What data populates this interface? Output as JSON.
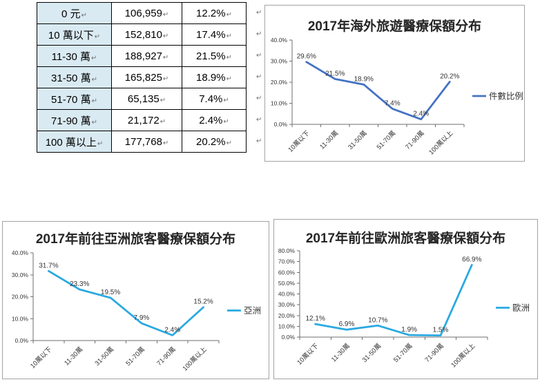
{
  "document": {
    "background": "#ffffff"
  },
  "formatting_mark": "↵",
  "table": {
    "first_column_bg": "#D9EAF2",
    "rows": [
      {
        "range": "0 元",
        "count": "106,959",
        "share": "12.2%"
      },
      {
        "range": "10 萬以下",
        "count": "152,810",
        "share": "17.4%"
      },
      {
        "range": "11-30 萬",
        "count": "188,927",
        "share": "21.5%"
      },
      {
        "range": "31-50 萬",
        "count": "165,825",
        "share": "18.9%"
      },
      {
        "range": "51-70 萬",
        "count": "65,135",
        "share": "7.4%"
      },
      {
        "range": "71-90 萬",
        "count": "21,172",
        "share": "2.4%"
      },
      {
        "range": "100 萬以上",
        "count": "177,768",
        "share": "20.2%"
      }
    ]
  },
  "chart_data": [
    {
      "type": "line",
      "title": "2017年海外旅遊醫療保額分布",
      "categories": [
        "10萬以下",
        "11-30萬",
        "31-50萬",
        "51-70萬",
        "71-90萬",
        "100萬以上"
      ],
      "series": [
        {
          "name": "件數比例",
          "values": [
            29.6,
            21.5,
            18.9,
            7.4,
            2.4,
            20.2
          ]
        }
      ],
      "data_labels": [
        "29.6%",
        "21.5%",
        "18.9%",
        "7.4%",
        "2.4%",
        "20.2%"
      ],
      "ylim": [
        0,
        40
      ],
      "ytick_step": 10,
      "ytick_labels": [
        "0.0%",
        "10.0%",
        "20.0%",
        "30.0%",
        "40.0%"
      ],
      "line_color": "#4472C4",
      "grid": false,
      "legend_position": "right"
    },
    {
      "type": "line",
      "title": "2017年前往亞洲旅客醫療保額分布",
      "categories": [
        "10萬以下",
        "11-30萬",
        "31-50萬",
        "51-70萬",
        "71-90萬",
        "100萬以上"
      ],
      "series": [
        {
          "name": "亞洲",
          "values": [
            31.7,
            23.3,
            19.5,
            7.9,
            2.4,
            15.2
          ]
        }
      ],
      "data_labels": [
        "31.7%",
        "23.3%",
        "19.5%",
        "7.9%",
        "2.4%",
        "15.2%"
      ],
      "ylim": [
        0,
        40
      ],
      "ytick_step": 10,
      "ytick_labels": [
        "0.0%",
        "10.0%",
        "20.0%",
        "30.0%",
        "40.0%"
      ],
      "line_color": "#29A9E1",
      "grid": false,
      "legend_position": "right"
    },
    {
      "type": "line",
      "title": "2017年前往歐洲旅客醫療保額分布",
      "categories": [
        "10萬以下",
        "11-30萬",
        "31-50萬",
        "51-70萬",
        "71-90萬",
        "100萬以上"
      ],
      "series": [
        {
          "name": "歐洲",
          "values": [
            12.1,
            6.9,
            10.7,
            1.9,
            1.5,
            66.9
          ]
        }
      ],
      "data_labels": [
        "12.1%",
        "6.9%",
        "10.7%",
        "1.9%",
        "1.5%",
        "66.9%"
      ],
      "ylim": [
        0,
        80
      ],
      "ytick_step": 10,
      "ytick_labels": [
        "0.0%",
        "10.0%",
        "20.0%",
        "30.0%",
        "40.0%",
        "50.0%",
        "60.0%",
        "70.0%",
        "80.0%"
      ],
      "line_color": "#29A9E1",
      "grid": false,
      "legend_position": "right"
    }
  ]
}
